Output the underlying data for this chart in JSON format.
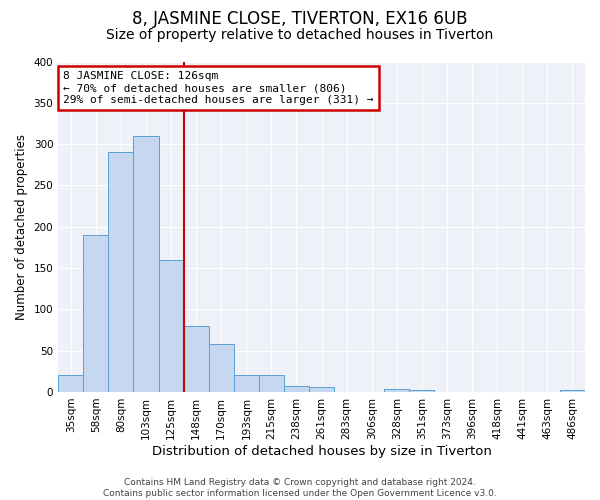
{
  "title": "8, JASMINE CLOSE, TIVERTON, EX16 6UB",
  "subtitle": "Size of property relative to detached houses in Tiverton",
  "xlabel": "Distribution of detached houses by size in Tiverton",
  "ylabel": "Number of detached properties",
  "categories": [
    "35sqm",
    "58sqm",
    "80sqm",
    "103sqm",
    "125sqm",
    "148sqm",
    "170sqm",
    "193sqm",
    "215sqm",
    "238sqm",
    "261sqm",
    "283sqm",
    "306sqm",
    "328sqm",
    "351sqm",
    "373sqm",
    "396sqm",
    "418sqm",
    "441sqm",
    "463sqm",
    "486sqm"
  ],
  "values": [
    20,
    190,
    290,
    310,
    160,
    80,
    58,
    20,
    20,
    7,
    6,
    0,
    0,
    4,
    2,
    0,
    0,
    0,
    0,
    0,
    2
  ],
  "highlight_index": 4,
  "bar_color": "#c5d8f0",
  "bar_edge_color": "#5a9fd4",
  "vline_color": "#cc0000",
  "background_color": "#ffffff",
  "plot_bg_color": "#eef2f8",
  "grid_color": "#ffffff",
  "annotation_text": "8 JASMINE CLOSE: 126sqm\n← 70% of detached houses are smaller (806)\n29% of semi-detached houses are larger (331) →",
  "annotation_box_color": "#ffffff",
  "annotation_box_edge": "#cc0000",
  "ylim": [
    0,
    400
  ],
  "yticks": [
    0,
    50,
    100,
    150,
    200,
    250,
    300,
    350,
    400
  ],
  "footer": "Contains HM Land Registry data © Crown copyright and database right 2024.\nContains public sector information licensed under the Open Government Licence v3.0.",
  "title_fontsize": 12,
  "subtitle_fontsize": 10,
  "xlabel_fontsize": 9.5,
  "ylabel_fontsize": 8.5,
  "tick_fontsize": 7.5,
  "annotation_fontsize": 8,
  "footer_fontsize": 6.5
}
